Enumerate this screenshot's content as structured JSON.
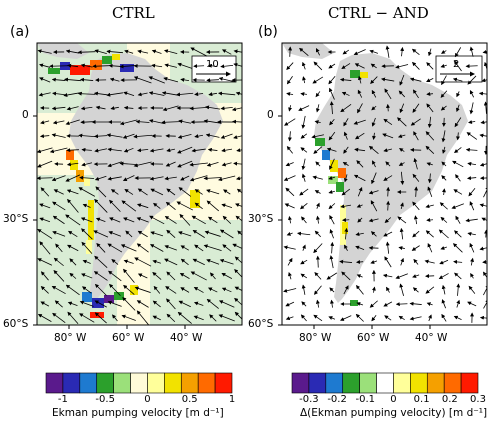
{
  "panels": [
    {
      "title": "CTRL",
      "tag": "(a)",
      "ref_vector_label": "10",
      "lon_ticks": [
        "80° W",
        "60° W",
        "40° W"
      ],
      "lat_ticks": [
        "0",
        "30°S",
        "60°S"
      ],
      "colorbar": {
        "ticks": [
          "-1",
          "-0.5",
          "0",
          "0.5",
          "1"
        ],
        "label": "Ekman pumping velocity [m d⁻¹]",
        "colors": [
          "#5a1a8c",
          "#2a2ab4",
          "#1e7ad0",
          "#2ca02c",
          "#9be07a",
          "#fffbd8",
          "#ffff9a",
          "#f2e200",
          "#f5a000",
          "#ff6a00",
          "#ff1a00"
        ]
      }
    },
    {
      "title": "CTRL − AND",
      "tag": "(b)",
      "ref_vector_label": "2",
      "lon_ticks": [
        "80° W",
        "60° W",
        "40° W"
      ],
      "lat_ticks": [
        "0",
        "30°S",
        "60°S"
      ],
      "colorbar": {
        "ticks": [
          "-0.3",
          "-0.2",
          "-0.1",
          "0",
          "0.1",
          "0.2",
          "0.3"
        ],
        "label": "Δ(Ekman pumping velocity) [m d⁻¹]",
        "colors": [
          "#5a1a8c",
          "#2a2ab4",
          "#1e7ad0",
          "#2ca02c",
          "#9be07a",
          "#ffffff",
          "#ffff9a",
          "#f2e200",
          "#f5a000",
          "#ff6a00",
          "#ff1a00"
        ]
      }
    }
  ],
  "colors": {
    "land": "#d4d4d4",
    "ocean_a": "#d9ecd4",
    "ocean_b": "#ffffff",
    "arrow": "#000000"
  }
}
